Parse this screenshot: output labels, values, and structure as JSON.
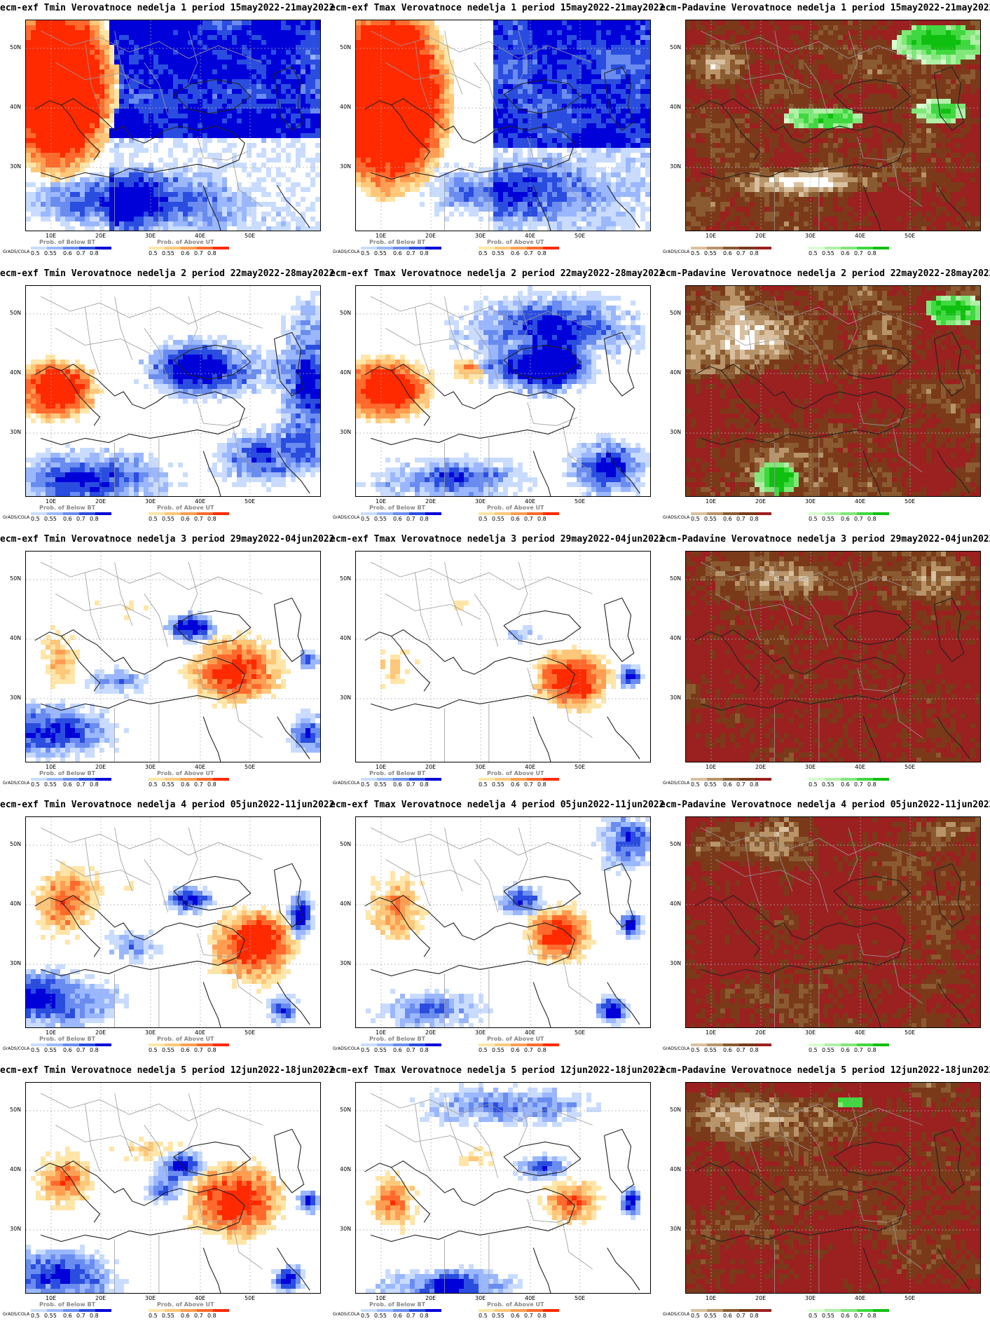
{
  "panels": [
    {
      "title": "ecm-exf Tmin Verovatnoce nedelja 1 period 15may2022-21may2022",
      "kind": "temp",
      "scheme": "w1min"
    },
    {
      "title": "ecm-exf Tmax Verovatnoce nedelja 1 period 15may2022-21may2022",
      "kind": "temp",
      "scheme": "w1max"
    },
    {
      "title": "ecm-Padavine Verovatnoce nedelja 1 period 15may2022-21may2022",
      "kind": "precip",
      "scheme": "p1"
    },
    {
      "title": "ecm-exf Tmin Verovatnoce nedelja 2 period 22may2022-28may2022",
      "kind": "temp",
      "scheme": "w2min"
    },
    {
      "title": "ecm-exf Tmax Verovatnoce nedelja 2 period 22may2022-28may2022",
      "kind": "temp",
      "scheme": "w2max"
    },
    {
      "title": "ecm-Padavine Verovatnoce nedelja 2 period 22may2022-28may2022",
      "kind": "precip",
      "scheme": "p2"
    },
    {
      "title": "ecm-exf Tmin Verovatnoce nedelja 3 period 29may2022-04jun2022",
      "kind": "temp",
      "scheme": "w3min"
    },
    {
      "title": "ecm-exf Tmax Verovatnoce nedelja 3 period 29may2022-04jun2022",
      "kind": "temp",
      "scheme": "w3max"
    },
    {
      "title": "ecm-Padavine Verovatnoce nedelja 3 period 29may2022-04jun2022",
      "kind": "precip",
      "scheme": "p3"
    },
    {
      "title": "ecm-exf Tmin Verovatnoce nedelja 4 period 05jun2022-11jun2022",
      "kind": "temp",
      "scheme": "w4min"
    },
    {
      "title": "ecm-exf Tmax Verovatnoce nedelja 4 period 05jun2022-11jun2022",
      "kind": "temp",
      "scheme": "w4max"
    },
    {
      "title": "ecm-Padavine Verovatnoce nedelja 4 period 05jun2022-11jun2022",
      "kind": "precip",
      "scheme": "p4"
    },
    {
      "title": "ecm-exf Tmin Verovatnoce nedelja 5 period 12jun2022-18jun2022",
      "kind": "temp",
      "scheme": "w5min"
    },
    {
      "title": "ecm-exf Tmax Verovatnoce nedelja 5 period 12jun2022-18jun2022",
      "kind": "temp",
      "scheme": "w5max"
    },
    {
      "title": "ecm-Padavine Verovatnoce nedelja 5 period 12jun2022-18jun2022",
      "kind": "precip",
      "scheme": "p5"
    }
  ],
  "lat_labels": [
    "50N",
    "40N",
    "30N"
  ],
  "lon_labels": [
    "10E",
    "20E",
    "30E",
    "40E",
    "50E"
  ],
  "grads_label": "GrADS/COLA",
  "legend": {
    "temp_below_title": "Prob. of Below BT",
    "temp_above_title": "Prob. of Above UT",
    "precip_below_title": "",
    "precip_above_title": "",
    "below_ticks": [
      "0.5",
      "0.55",
      "0.6",
      "0.7",
      "0.8"
    ],
    "above_ticks": [
      "0.5",
      "0.55",
      "0.6",
      "0.7",
      "0.8"
    ],
    "colors": {
      "below": [
        "#c9dcff",
        "#9ab7ff",
        "#6a8cf0",
        "#2a4de0",
        "#0000d8"
      ],
      "above": [
        "#ffe6a8",
        "#ffc77a",
        "#ff9e52",
        "#ff6a2c",
        "#ff2a00"
      ],
      "dry": [
        "#d8c0a0",
        "#b89468",
        "#8a5a30",
        "#7a3a1a",
        "#9b2020"
      ],
      "wet": [
        "#d8ffd0",
        "#b0f0a8",
        "#80e878",
        "#40d840",
        "#10c010"
      ]
    }
  }
}
